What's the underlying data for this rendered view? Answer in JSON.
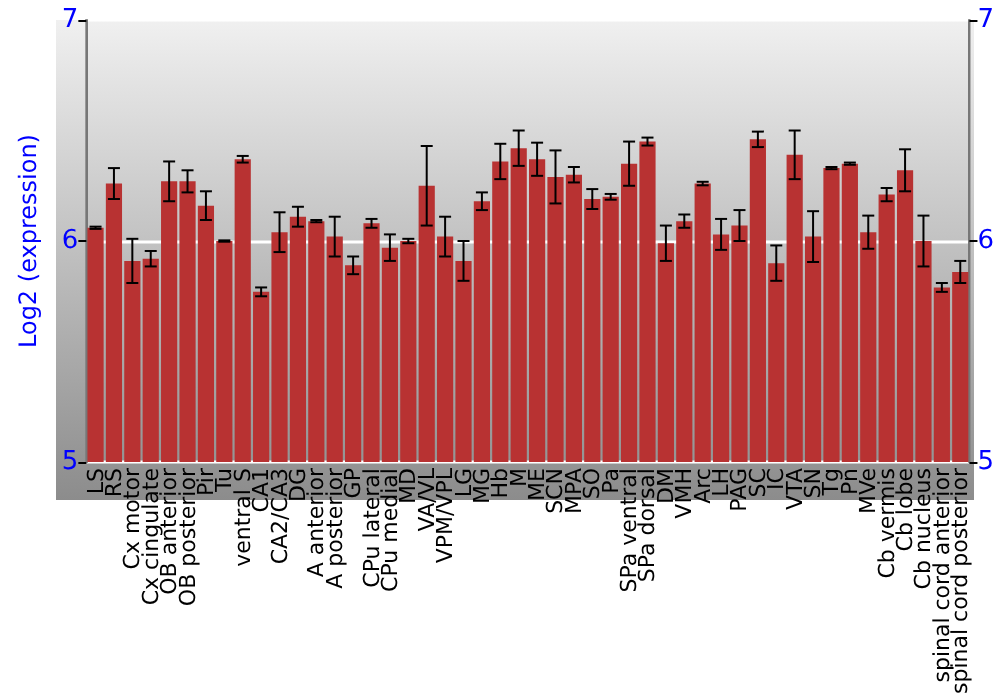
{
  "chart_data": {
    "type": "bar",
    "ylabel": "Log2 (expression)",
    "categories": [
      "LS",
      "RS",
      "Cx motor",
      "Cx cingulate",
      "OB anterior",
      "OB posterior",
      "Pir",
      "Tu",
      "ventral S",
      "CA1",
      "CA2/CA3",
      "DG",
      "A anterior",
      "A posterior",
      "GP",
      "CPu lateral",
      "CPu medial",
      "MD",
      "VA/VL",
      "VPM/VPL",
      "LG",
      "MG",
      "Hb",
      "M",
      "ME",
      "SCN",
      "MPA",
      "SO",
      "Pa",
      "SPa ventral",
      "SPa dorsal",
      "DM",
      "VMH",
      "Arc",
      "LH",
      "PAG",
      "SC",
      "IC",
      "VTA",
      "SN",
      "Tg",
      "Pn",
      "MVe",
      "Cb vermis",
      "Cb lobe",
      "Cb nucleus",
      "spinal cord anterior",
      "spinal cord posterior"
    ],
    "values": [
      6.06,
      6.26,
      5.91,
      5.92,
      6.27,
      6.27,
      6.16,
      6.0,
      6.37,
      5.77,
      6.04,
      6.11,
      6.09,
      6.02,
      5.89,
      6.08,
      5.97,
      6.0,
      6.25,
      6.02,
      5.91,
      6.18,
      6.36,
      6.42,
      6.37,
      6.29,
      6.3,
      6.19,
      6.2,
      6.35,
      6.45,
      5.99,
      6.09,
      6.26,
      6.03,
      6.07,
      6.46,
      5.9,
      6.39,
      6.02,
      6.33,
      6.35,
      6.04,
      6.21,
      6.32,
      6.0,
      5.79,
      5.86
    ],
    "errors": [
      0.005,
      0.07,
      0.1,
      0.035,
      0.09,
      0.05,
      0.065,
      0.003,
      0.015,
      0.02,
      0.09,
      0.045,
      0.005,
      0.09,
      0.04,
      0.02,
      0.06,
      0.01,
      0.18,
      0.09,
      0.09,
      0.04,
      0.08,
      0.08,
      0.075,
      0.12,
      0.035,
      0.045,
      0.013,
      0.1,
      0.018,
      0.08,
      0.03,
      0.008,
      0.07,
      0.07,
      0.035,
      0.08,
      0.11,
      0.115,
      0.005,
      0.005,
      0.075,
      0.03,
      0.095,
      0.115,
      0.02,
      0.05
    ],
    "color": "#b83232",
    "ylim": [
      5,
      7
    ],
    "yticks": [
      5,
      6,
      7
    ],
    "y2lim": [
      5,
      7
    ],
    "y2ticks": [
      5,
      6,
      7
    ],
    "grid": "y"
  }
}
